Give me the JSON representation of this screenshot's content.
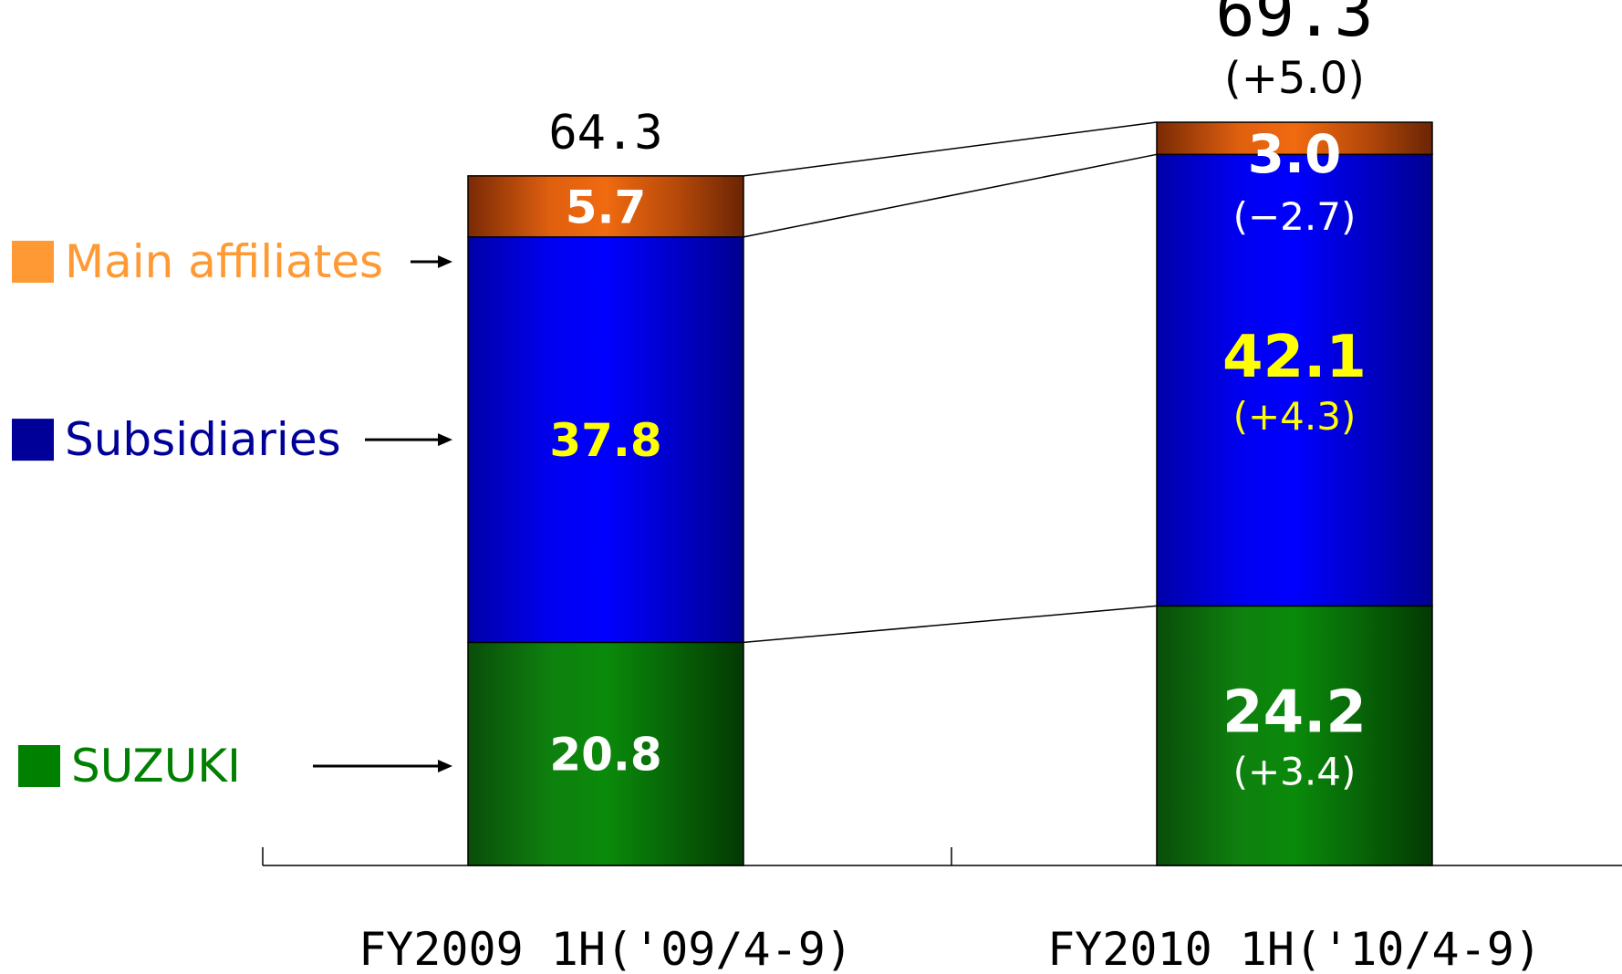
{
  "chart_data": {
    "type": "bar",
    "stacked": true,
    "categories": [
      "FY2009 1H('09/4-9)",
      "FY2010 1H('10/4-9)"
    ],
    "series": [
      {
        "name": "SUZUKI",
        "color": "#008000",
        "values": [
          20.8,
          24.2
        ],
        "labels": [
          "20.8",
          "24.2"
        ],
        "changes": [
          "",
          "(+3.4)"
        ]
      },
      {
        "name": "Subsidiaries",
        "color": "#0000ff",
        "values": [
          37.8,
          42.1
        ],
        "labels": [
          "37.8",
          "42.1"
        ],
        "changes": [
          "",
          "(+4.3)"
        ]
      },
      {
        "name": "Main affiliates",
        "color": "#e0600f",
        "values": [
          5.7,
          3.0
        ],
        "labels": [
          "5.7",
          "3.0"
        ],
        "changes": [
          "",
          "(−2.7)"
        ]
      }
    ],
    "totals": [
      "64.3",
      "69.3"
    ],
    "total_changes": [
      "",
      "(+5.0)"
    ],
    "ylim": [
      0,
      70
    ],
    "legend": {
      "placement": "left",
      "colors": {
        "Main affiliates": "#ff9933",
        "Subsidiaries": "#000099",
        "SUZUKI": "#008000"
      }
    },
    "grid": false
  }
}
